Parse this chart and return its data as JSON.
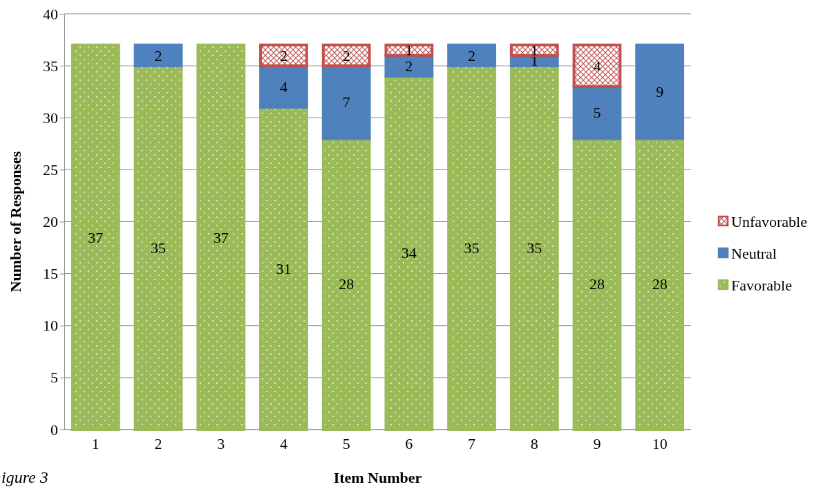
{
  "chart_data": {
    "type": "bar",
    "stacked": true,
    "xlabel": "Item Number",
    "ylabel": "Number of Responses",
    "categories": [
      "1",
      "2",
      "3",
      "4",
      "5",
      "6",
      "7",
      "8",
      "9",
      "10"
    ],
    "series": [
      {
        "name": "Favorable",
        "color": "#9bbb59",
        "values": [
          37,
          35,
          37,
          31,
          28,
          34,
          35,
          35,
          28,
          28
        ]
      },
      {
        "name": "Neutral",
        "color": "#4f81bd",
        "values": [
          null,
          2,
          null,
          4,
          7,
          2,
          2,
          1,
          5,
          9
        ]
      },
      {
        "name": "Unfavorable",
        "color": "#c0504d",
        "values": [
          null,
          null,
          null,
          2,
          2,
          1,
          null,
          1,
          4,
          null
        ]
      }
    ],
    "ylim": [
      0,
      40
    ],
    "yticks": [
      0,
      5,
      10,
      15,
      20,
      25,
      30,
      35,
      40
    ],
    "grid": "y",
    "legend": "right",
    "data_labels": true,
    "annotations": [
      "igure 3"
    ]
  }
}
